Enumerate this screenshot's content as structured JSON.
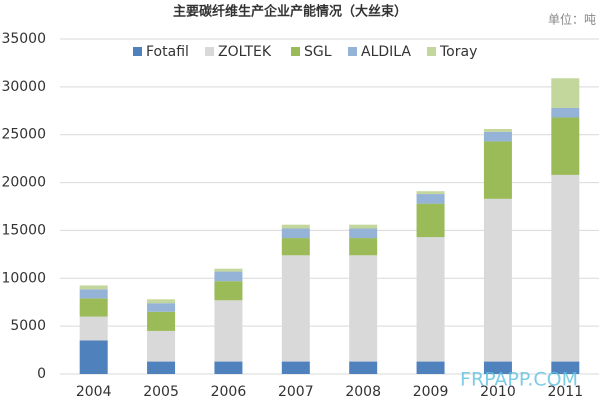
{
  "chart_data": {
    "type": "stacked-bar",
    "title": "主要碳纤维生产企业产能情况（大丝束）",
    "unit_note": "单位：吨",
    "watermark": "FRPAPP.COM",
    "categories": [
      "2004",
      "2005",
      "2006",
      "2007",
      "2008",
      "2009",
      "2010",
      "2011"
    ],
    "series": [
      {
        "name": "Fotafil",
        "color": "#4f81bd",
        "values": [
          3500,
          1300,
          1300,
          1300,
          1300,
          1300,
          1300,
          1300
        ]
      },
      {
        "name": "ZOLTEK",
        "color": "#d9d9d9",
        "values": [
          2500,
          3200,
          6400,
          11100,
          11100,
          13000,
          17000,
          19500
        ]
      },
      {
        "name": "SGL",
        "color": "#9bbb59",
        "values": [
          1900,
          2000,
          2000,
          1800,
          1800,
          3500,
          6000,
          6000
        ]
      },
      {
        "name": "ALDILA",
        "color": "#95b3d7",
        "values": [
          950,
          900,
          1000,
          1000,
          1000,
          1000,
          1000,
          1000
        ]
      },
      {
        "name": "Toray",
        "color": "#c3d69b",
        "values": [
          400,
          400,
          300,
          400,
          400,
          300,
          300,
          3100
        ]
      }
    ],
    "ylim": [
      0,
      35000
    ],
    "yticks": [
      0,
      5000,
      10000,
      15000,
      20000,
      25000,
      30000,
      35000
    ],
    "grid": true
  }
}
